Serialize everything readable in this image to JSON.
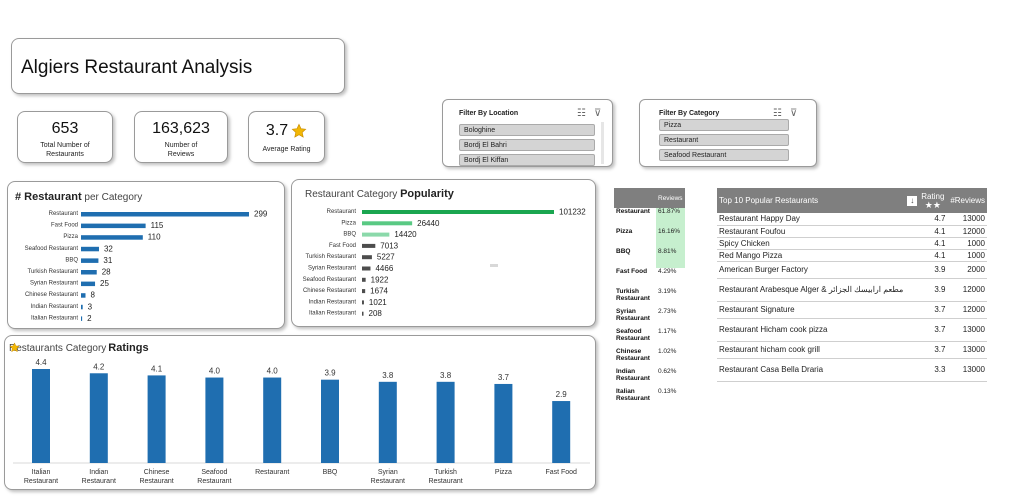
{
  "title": "Algiers Restaurant Analysis",
  "kpis": [
    {
      "value": "653",
      "label1": "Total Number of",
      "label2": "Restaurants"
    },
    {
      "value": "163,623",
      "label1": "Number of",
      "label2": "Reviews"
    },
    {
      "value": "3.7",
      "label1": "Average Rating",
      "label2": ""
    }
  ],
  "filter_location": {
    "header": "Filter By Location",
    "items": [
      "Bologhine",
      "Bordj El Bahri",
      "Bordj El Kiffan"
    ]
  },
  "filter_category": {
    "header": "Filter By Category",
    "items": [
      "Pizza",
      "Restaurant",
      "Seafood Restaurant"
    ]
  },
  "colors": {
    "blue": "#1f6eb0",
    "green1": "#1aa650",
    "green2": "#59c983",
    "green3": "#8bd9aa",
    "dark": "#4d4d4d",
    "header_gray": "#7f7f7f",
    "share_green": "#c6efce"
  },
  "share_table": {
    "header": "Reviews",
    "rows": [
      {
        "category": "Restaurant",
        "pct": "61.87%"
      },
      {
        "category": "Pizza",
        "pct": "16.16%"
      },
      {
        "category": "BBQ",
        "pct": "8.81%"
      },
      {
        "category": "Fast Food",
        "pct": "4.29%"
      },
      {
        "category": "Turkish Restaurant",
        "pct": "3.19%"
      },
      {
        "category": "Syrian Restaurant",
        "pct": "2.73%"
      },
      {
        "category": "Seafood Restaurant",
        "pct": "1.17%"
      },
      {
        "category": "Chinese Restaurant",
        "pct": "1.02%"
      },
      {
        "category": "Indian Restaurant",
        "pct": "0.62%"
      },
      {
        "category": "Italian Restaurant",
        "pct": "0.13%"
      }
    ]
  },
  "top10": {
    "header": "Top 10 Popular Restaurants",
    "rating_header": "Rating",
    "reviews_header": "#Reviews",
    "rows": [
      {
        "name": "Restaurant Happy Day",
        "rating": "4.7",
        "reviews": "13000"
      },
      {
        "name": "Restaurant Foufou",
        "rating": "4.1",
        "reviews": "12000"
      },
      {
        "name": "Spicy Chicken",
        "rating": "4.1",
        "reviews": "1000"
      },
      {
        "name": "Red Mango Pizza",
        "rating": "4.1",
        "reviews": "1000"
      },
      {
        "name": "American Burger Factory",
        "rating": "3.9",
        "reviews": "2000"
      },
      {
        "name": "Restaurant Arabesque Alger & مطعم ارابيسك الجزائر",
        "rating": "3.9",
        "reviews": "12000"
      },
      {
        "name": "Restaurant Signature",
        "rating": "3.7",
        "reviews": "12000"
      },
      {
        "name": "Restaurant Hicham cook pizza",
        "rating": "3.7",
        "reviews": "13000"
      },
      {
        "name": "Restaurant hicham cook grill",
        "rating": "3.7",
        "reviews": "13000"
      },
      {
        "name": "Restaurant Casa Bella Draria",
        "rating": "3.3",
        "reviews": "13000"
      }
    ]
  },
  "chart_data": [
    {
      "type": "bar",
      "orientation": "horizontal",
      "title_bold": "# Restaurant",
      "title_rest": " per Category",
      "categories": [
        "Restaurant",
        "Fast Food",
        "Pizza",
        "Seafood Restaurant",
        "BBQ",
        "Turkish Restaurant",
        "Syrian Restaurant",
        "Chinese Restaurant",
        "Indian Restaurant",
        "Italian Restaurant"
      ],
      "values": [
        299,
        115,
        110,
        32,
        31,
        28,
        25,
        8,
        3,
        2
      ],
      "xlim": [
        0,
        299
      ]
    },
    {
      "type": "bar",
      "orientation": "horizontal",
      "title_rest": "Restaurant Category ",
      "title_bold": "Popularity",
      "categories": [
        "Restaurant",
        "Pizza",
        "BBQ",
        "Fast Food",
        "Turkish Restaurant",
        "Syrian Restaurant",
        "Seafood Restaurant",
        "Chinese Restaurant",
        "Indian Restaurant",
        "Italian Restaurant"
      ],
      "values": [
        101232,
        26440,
        14420,
        7013,
        5227,
        4466,
        1922,
        1674,
        1021,
        208
      ],
      "xlim": [
        0,
        101232
      ]
    },
    {
      "type": "bar",
      "orientation": "vertical",
      "title_rest": "Restaurants Category ",
      "title_bold": "Ratings",
      "categories": [
        "Italian Restaurant",
        "Indian Restaurant",
        "Chinese Restaurant",
        "Seafood Restaurant",
        "Restaurant",
        "BBQ",
        "Syrian Restaurant",
        "Turkish Restaurant",
        "Pizza",
        "Fast Food"
      ],
      "values": [
        4.4,
        4.2,
        4.1,
        4.0,
        4.0,
        3.9,
        3.8,
        3.8,
        3.7,
        2.9
      ],
      "ylim": [
        0,
        4.4
      ]
    }
  ]
}
